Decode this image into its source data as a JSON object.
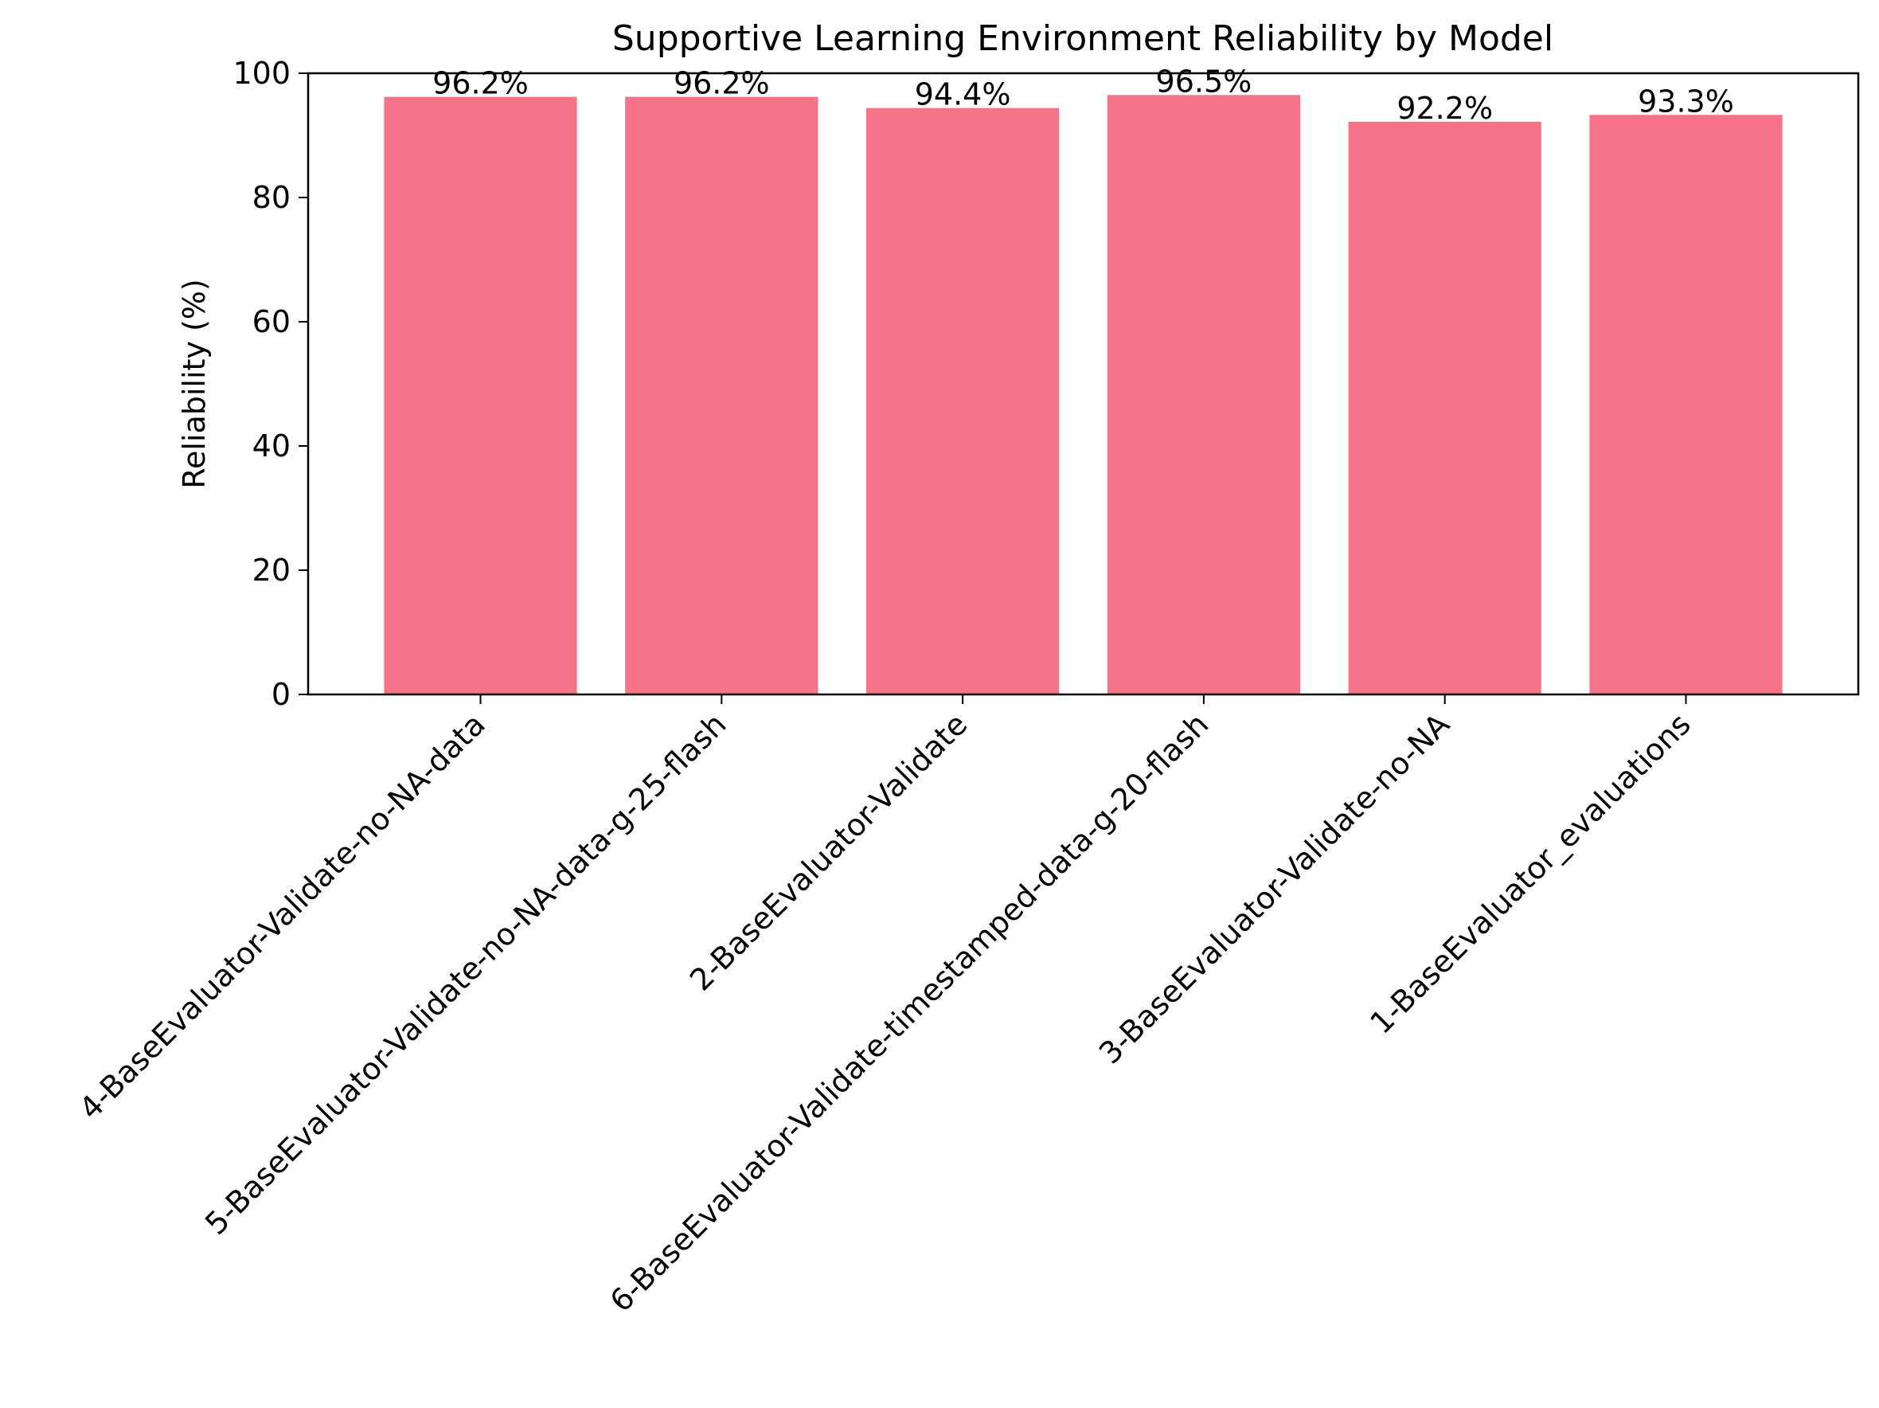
{
  "chart_data": {
    "type": "bar",
    "title": "Supportive Learning Environment Reliability by Model",
    "xlabel": "",
    "ylabel": "Reliability (%)",
    "categories": [
      "4-BaseEvaluator-Validate-no-NA-data",
      "5-BaseEvaluator-Validate-no-NA-data-g-25-flash",
      "2-BaseEvaluator-Validate",
      "6-BaseEvaluator-Validate-timestamped-data-g-20-flash",
      "3-BaseEvaluator-Validate-no-NA",
      "1-BaseEvaluator_evaluations"
    ],
    "values": [
      96.2,
      96.2,
      94.4,
      96.5,
      92.2,
      93.3
    ],
    "value_labels": [
      "96.2%",
      "96.2%",
      "94.4%",
      "96.5%",
      "92.2%",
      "93.3%"
    ],
    "ylim": [
      0,
      100
    ],
    "yticks": [
      0,
      20,
      40,
      60,
      80,
      100
    ],
    "ytick_labels": [
      "0",
      "20",
      "40",
      "60",
      "80",
      "100"
    ],
    "grid": false,
    "bar_color": "#f67288"
  }
}
